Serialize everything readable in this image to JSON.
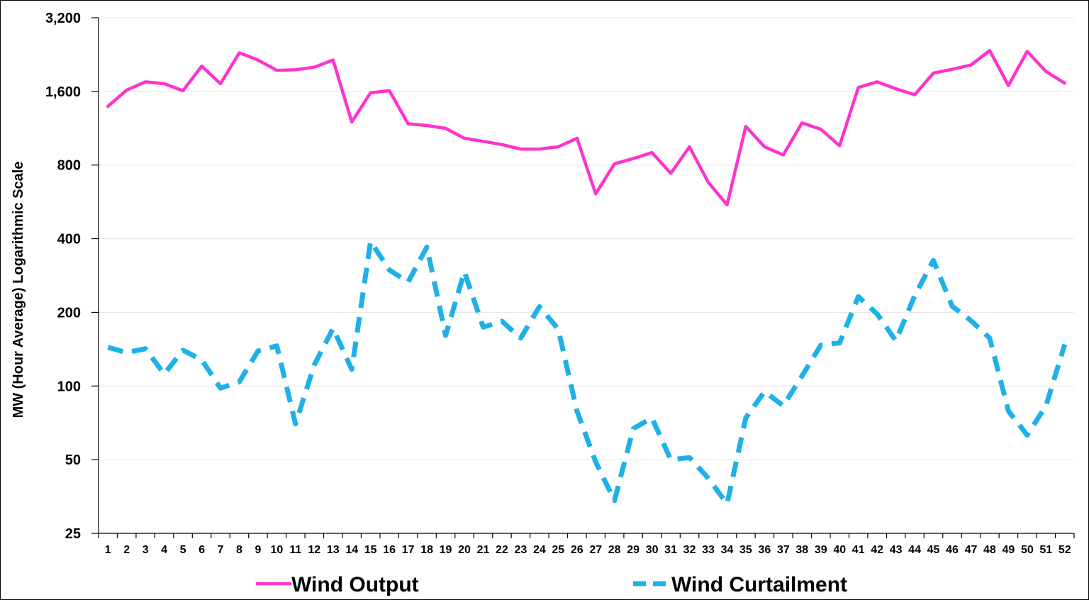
{
  "chart_data": {
    "type": "line",
    "title": "",
    "xlabel": "",
    "ylabel": "MW (Hour Average) Logarithmic Scale",
    "yscale": "log2",
    "ylim": [
      25,
      3200
    ],
    "y_ticks": [
      25,
      50,
      100,
      200,
      400,
      800,
      1600,
      3200
    ],
    "y_tick_labels": [
      "25",
      "50",
      "100",
      "200",
      "400",
      "800",
      "1,600",
      "3,200"
    ],
    "x": [
      1,
      2,
      3,
      4,
      5,
      6,
      7,
      8,
      9,
      10,
      11,
      12,
      13,
      14,
      15,
      16,
      17,
      18,
      19,
      20,
      21,
      22,
      23,
      24,
      25,
      26,
      27,
      28,
      29,
      30,
      31,
      32,
      33,
      34,
      35,
      36,
      37,
      38,
      39,
      40,
      41,
      42,
      43,
      44,
      45,
      46,
      47,
      48,
      49,
      50,
      51,
      52
    ],
    "grid": "horizontal",
    "legend_position": "bottom",
    "series": [
      {
        "name": "Wind Output",
        "color": "#ff33cc",
        "style": "solid",
        "values": [
          1390,
          1620,
          1750,
          1720,
          1610,
          2030,
          1720,
          2300,
          2150,
          1950,
          1960,
          2010,
          2150,
          1200,
          1580,
          1610,
          1180,
          1160,
          1130,
          1030,
          1000,
          970,
          930,
          930,
          950,
          1030,
          610,
          810,
          850,
          900,
          740,
          950,
          680,
          550,
          1150,
          950,
          880,
          1190,
          1120,
          960,
          1660,
          1750,
          1640,
          1550,
          1900,
          1970,
          2050,
          2350,
          1690,
          2330,
          1930,
          1730
        ]
      },
      {
        "name": "Wind Curtailment",
        "color": "#1eb1e7",
        "style": "dashed",
        "values": [
          144,
          137,
          142,
          112,
          140,
          128,
          98,
          104,
          139,
          146,
          70,
          122,
          172,
          117,
          390,
          298,
          266,
          370,
          161,
          293,
          174,
          184,
          157,
          211,
          171,
          79,
          49,
          34,
          67,
          74,
          50,
          51,
          42,
          33,
          74,
          95,
          83,
          110,
          147,
          150,
          232,
          197,
          153,
          234,
          326,
          212,
          185,
          157,
          79,
          63,
          83,
          148
        ]
      }
    ]
  }
}
